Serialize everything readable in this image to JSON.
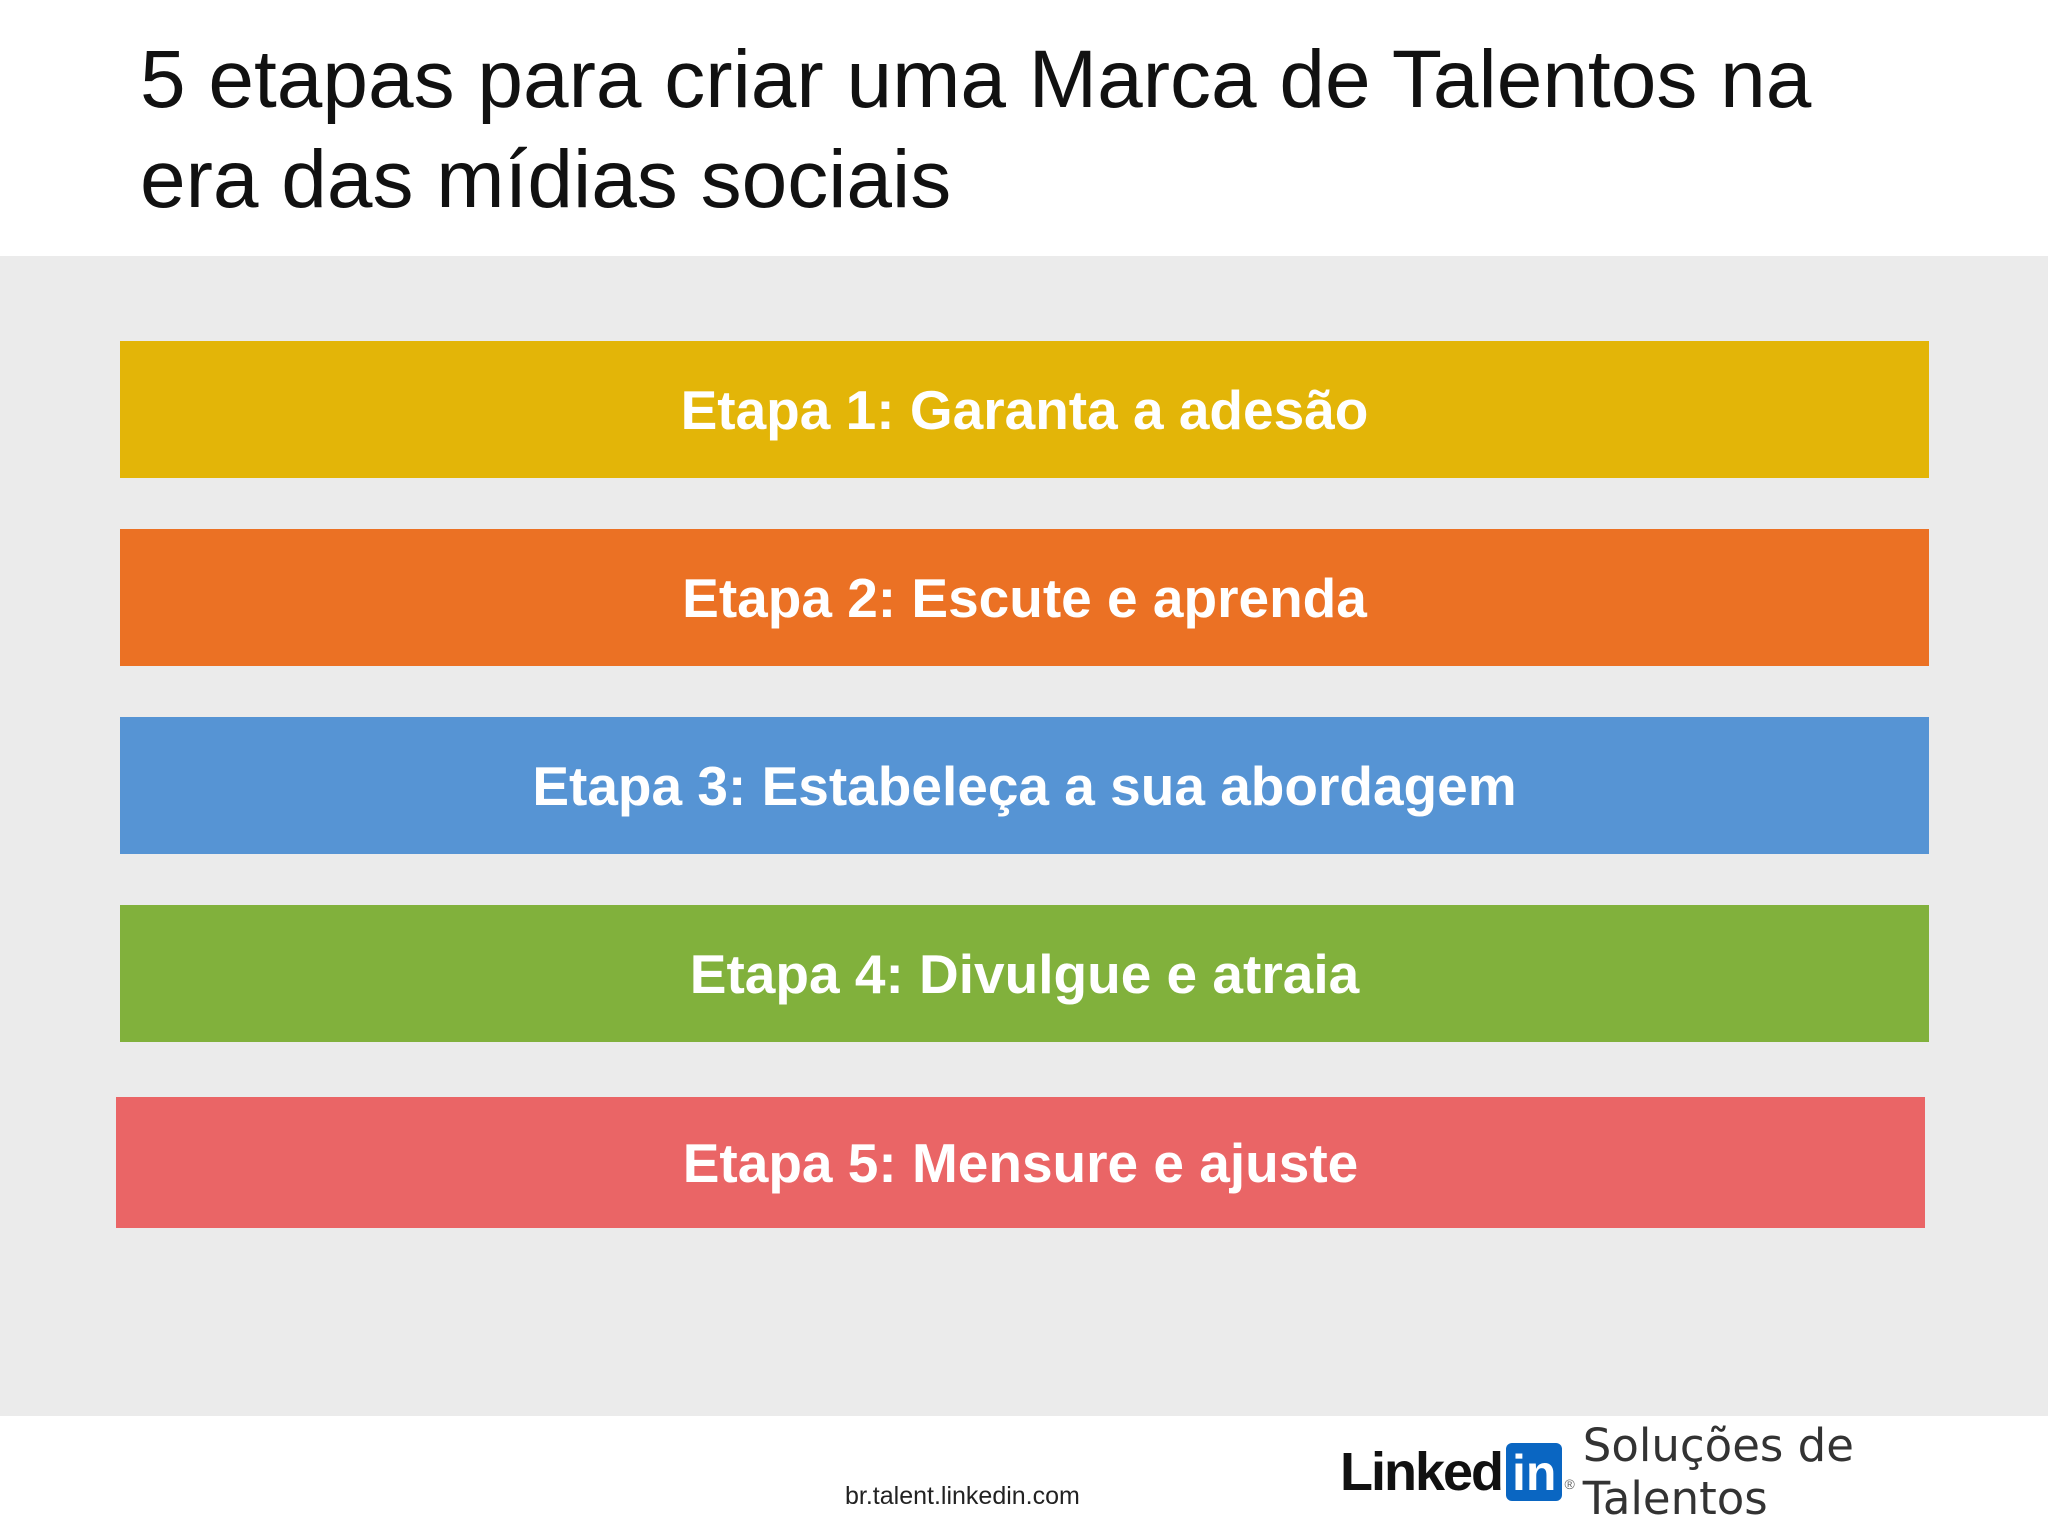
{
  "slide": {
    "title": "5 etapas para criar uma Marca de Talentos na era das mídias sociais"
  },
  "steps": [
    {
      "label": "Etapa 1: Garanta a adesão",
      "color": "#e3b508"
    },
    {
      "label": "Etapa 2: Escute e aprenda",
      "color": "#eb7124"
    },
    {
      "label": "Etapa 3: Estabeleça a sua abordagem",
      "color": "#5694d4"
    },
    {
      "label": "Etapa 4: Divulgue e atraia",
      "color": "#81b13c"
    },
    {
      "label": "Etapa 5: Mensure e ajuste",
      "color": "#ea6566"
    }
  ],
  "footer": {
    "url": "br.talent.linkedin.com",
    "brand_word": "Linked",
    "brand_box": "in",
    "brand_reg": "®",
    "brand_tagline": "Soluções de Talentos"
  },
  "colors": {
    "background": "#ffffff",
    "panel": "#ebebeb",
    "linkedin_blue": "#0a66c2"
  }
}
